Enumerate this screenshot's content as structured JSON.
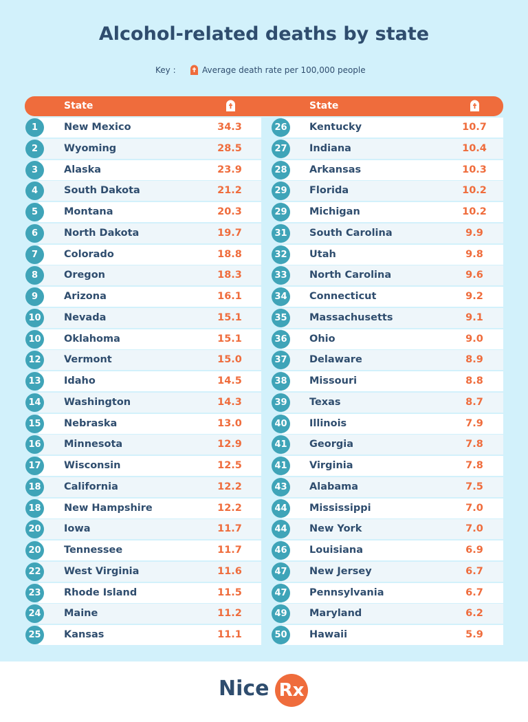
{
  "title": "Alcohol-related deaths by state",
  "key": {
    "label": "Key :",
    "text": "Average death rate per 100,000 people"
  },
  "table": {
    "left_header": "State",
    "right_header": "State",
    "left_rows": [
      [
        "1",
        "New Mexico",
        "34.3"
      ],
      [
        "2",
        "Wyoming",
        "28.5"
      ],
      [
        "3",
        "Alaska",
        "23.9"
      ],
      [
        "4",
        "South Dakota",
        "21.2"
      ],
      [
        "5",
        "Montana",
        "20.3"
      ],
      [
        "6",
        "North Dakota",
        "19.7"
      ],
      [
        "7",
        "Colorado",
        "18.8"
      ],
      [
        "8",
        "Oregon",
        "18.3"
      ],
      [
        "9",
        "Arizona",
        "16.1"
      ],
      [
        "10",
        "Nevada",
        "15.1"
      ],
      [
        "10",
        "Oklahoma",
        "15.1"
      ],
      [
        "12",
        "Vermont",
        "15.0"
      ],
      [
        "13",
        "Idaho",
        "14.5"
      ],
      [
        "14",
        "Washington",
        "14.3"
      ],
      [
        "15",
        "Nebraska",
        "13.0"
      ],
      [
        "16",
        "Minnesota",
        "12.9"
      ],
      [
        "17",
        "Wisconsin",
        "12.5"
      ],
      [
        "18",
        "California",
        "12.2"
      ],
      [
        "18",
        "New Hampshire",
        "12.2"
      ],
      [
        "20",
        "Iowa",
        "11.7"
      ],
      [
        "20",
        "Tennessee",
        "11.7"
      ],
      [
        "22",
        "West Virginia",
        "11.6"
      ],
      [
        "23",
        "Rhode Island",
        "11.5"
      ],
      [
        "24",
        "Maine",
        "11.2"
      ],
      [
        "25",
        "Kansas",
        "11.1"
      ]
    ],
    "right_rows": [
      [
        "26",
        "Kentucky",
        "10.7"
      ],
      [
        "27",
        "Indiana",
        "10.4"
      ],
      [
        "28",
        "Arkansas",
        "10.3"
      ],
      [
        "29",
        "Florida",
        "10.2"
      ],
      [
        "29",
        "Michigan",
        "10.2"
      ],
      [
        "31",
        "South Carolina",
        "9.9"
      ],
      [
        "32",
        "Utah",
        "9.8"
      ],
      [
        "33",
        "North Carolina",
        "9.6"
      ],
      [
        "34",
        "Connecticut",
        "9.2"
      ],
      [
        "35",
        "Massachusetts",
        "9.1"
      ],
      [
        "36",
        "Ohio",
        "9.0"
      ],
      [
        "37",
        "Delaware",
        "8.9"
      ],
      [
        "38",
        "Missouri",
        "8.8"
      ],
      [
        "39",
        "Texas",
        "8.7"
      ],
      [
        "40",
        "Illinois",
        "7.9"
      ],
      [
        "41",
        "Georgia",
        "7.8"
      ],
      [
        "41",
        "Virginia",
        "7.8"
      ],
      [
        "43",
        "Alabama",
        "7.5"
      ],
      [
        "44",
        "Mississippi",
        "7.0"
      ],
      [
        "44",
        "New York",
        "7.0"
      ],
      [
        "46",
        "Louisiana",
        "6.9"
      ],
      [
        "47",
        "New Jersey",
        "6.7"
      ],
      [
        "47",
        "Pennsylvania",
        "6.7"
      ],
      [
        "49",
        "Maryland",
        "6.2"
      ],
      [
        "50",
        "Hawaii",
        "5.9"
      ]
    ]
  },
  "footer": {
    "logo_left": "Nice",
    "logo_right": "Rx"
  }
}
